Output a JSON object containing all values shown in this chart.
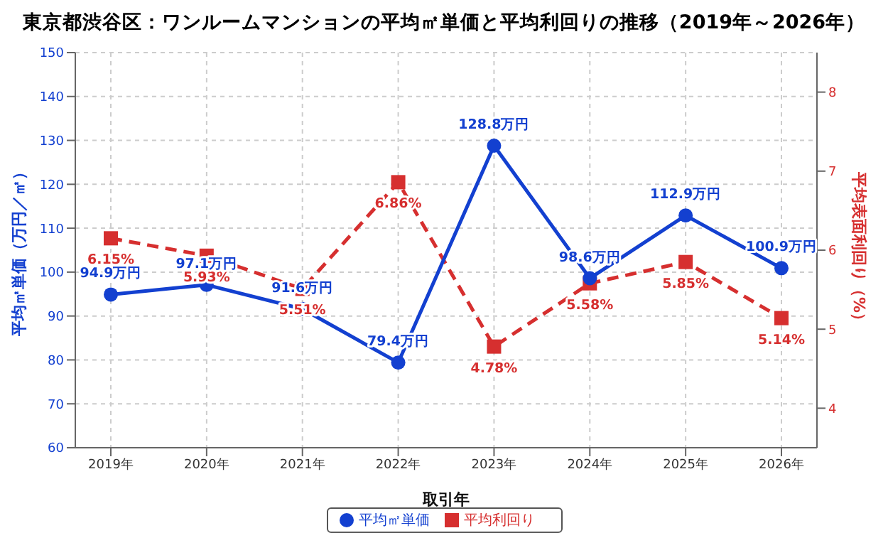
{
  "chart_data": {
    "type": "line",
    "title": "東京都渋谷区：ワンルームマンションの平均㎡単価と平均利回りの推移（2019年～2026年）",
    "xlabel": "取引年",
    "ylabel": "平均㎡単価（万円／㎡）",
    "y2label": "平均表面利回り（%）",
    "categories": [
      "2019年",
      "2020年",
      "2021年",
      "2022年",
      "2023年",
      "2024年",
      "2025年",
      "2026年"
    ],
    "series": [
      {
        "name": "平均㎡単価",
        "color": "#1340d0",
        "marker": "circle",
        "line_style": "solid",
        "values": [
          94.9,
          97.1,
          91.6,
          79.4,
          128.8,
          98.6,
          112.9,
          100.9
        ],
        "value_labels": [
          "94.9万円",
          "97.1万円",
          "91.6万円",
          "79.4万円",
          "128.8万円",
          "98.6万円",
          "112.9万円",
          "100.9万円"
        ]
      },
      {
        "name": "平均利回り",
        "type": "line",
        "axis": "y2",
        "color": "#d62f2f",
        "marker": "square",
        "line_style": "dashed",
        "values": [
          6.15,
          5.93,
          5.51,
          6.86,
          4.78,
          5.58,
          5.85,
          5.14
        ],
        "value_labels": [
          "6.15%",
          "5.93%",
          "5.51%",
          "6.86%",
          "4.78%",
          "5.58%",
          "5.85%",
          "5.14%"
        ]
      }
    ],
    "ylim": [
      60,
      150
    ],
    "yticks": [
      60,
      70,
      80,
      90,
      100,
      110,
      120,
      130,
      140,
      150
    ],
    "y2lim": [
      3.5,
      8.5
    ],
    "y2ticks": [
      4,
      5,
      6,
      7,
      8
    ],
    "grid": true,
    "legend": "bottom"
  }
}
